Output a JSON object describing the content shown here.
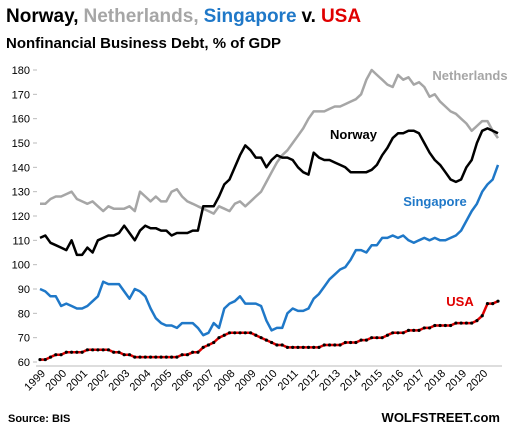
{
  "chart_data": {
    "type": "line",
    "title_parts": [
      {
        "text": "Norway,",
        "color": "#000000"
      },
      {
        "text": "Netherlands,",
        "color": "#a6a6a6"
      },
      {
        "text": "Singapore",
        "color": "#1f78c8"
      },
      {
        "text": "v.",
        "color": "#000000"
      },
      {
        "text": "USA",
        "color": "#e00000"
      }
    ],
    "subtitle": "Nonfinancial Business Debt, % of GDP",
    "source": "Source: BIS",
    "credit": "WOLFSTREET.com",
    "categories": [
      "1999",
      null,
      null,
      null,
      "2000",
      null,
      null,
      null,
      "2001",
      null,
      null,
      null,
      "2002",
      null,
      null,
      null,
      "2003",
      null,
      null,
      null,
      "2004",
      null,
      null,
      null,
      "2005",
      null,
      null,
      null,
      "2006",
      null,
      null,
      null,
      "2007",
      null,
      null,
      null,
      "2008",
      null,
      null,
      null,
      "2009",
      null,
      null,
      null,
      "2010",
      null,
      null,
      null,
      "2011",
      null,
      null,
      null,
      "2012",
      null,
      null,
      null,
      "2013",
      null,
      null,
      null,
      "2014",
      null,
      null,
      null,
      "2015",
      null,
      null,
      null,
      "2016",
      null,
      null,
      null,
      "2017",
      null,
      null,
      null,
      "2018",
      null,
      null,
      null,
      "2019",
      null,
      null,
      null,
      "2020",
      null,
      null,
      null
    ],
    "ylim": [
      60,
      180
    ],
    "yticks": [
      60,
      70,
      80,
      90,
      100,
      110,
      120,
      130,
      140,
      150,
      160,
      170,
      180
    ],
    "grid": false,
    "series": [
      {
        "name": "Netherlands",
        "color": "#a6a6a6",
        "values": [
          125,
          125,
          127,
          128,
          128,
          129,
          130,
          127,
          126,
          125,
          126,
          124,
          122,
          124,
          123,
          123,
          123,
          124,
          122,
          130,
          128,
          126,
          128,
          126,
          126,
          130,
          131,
          128,
          126,
          125,
          124,
          123,
          122,
          121,
          124,
          123,
          122,
          125,
          126,
          124,
          126,
          128,
          130,
          134,
          138,
          142,
          145,
          147,
          150,
          153,
          156,
          160,
          163,
          163,
          163,
          164,
          165,
          165,
          166,
          167,
          168,
          170,
          176,
          180,
          178,
          176,
          174,
          173,
          178,
          176,
          177,
          174,
          175,
          173,
          169,
          170,
          167,
          165,
          163,
          162,
          160,
          158,
          155,
          157,
          159,
          159,
          155,
          152
        ]
      },
      {
        "name": "Norway",
        "color": "#000000",
        "values": [
          111,
          112,
          109,
          108,
          107,
          106,
          110,
          104,
          104,
          107,
          105,
          110,
          111,
          112,
          112,
          113,
          116,
          113,
          110,
          114,
          116,
          115,
          115,
          114,
          114,
          112,
          113,
          113,
          113,
          114,
          114,
          124,
          124,
          124,
          128,
          133,
          135,
          140,
          145,
          149,
          147,
          144,
          144,
          140,
          143,
          145,
          144,
          144,
          143,
          140,
          138,
          137,
          146,
          144,
          143,
          143,
          142,
          141,
          140,
          138,
          138,
          138,
          138,
          139,
          141,
          145,
          148,
          152,
          154,
          154,
          155,
          155,
          154,
          150,
          146,
          143,
          141,
          138,
          135,
          134,
          135,
          140,
          143,
          150,
          155,
          156,
          155,
          154
        ]
      },
      {
        "name": "Singapore",
        "color": "#1f78c8",
        "values": [
          90,
          89,
          87,
          87,
          83,
          84,
          83,
          82,
          82,
          83,
          85,
          87,
          93,
          92,
          92,
          92,
          89,
          86,
          90,
          89,
          87,
          82,
          78,
          76,
          75,
          75,
          74,
          76,
          76,
          76,
          74,
          71,
          72,
          76,
          74,
          82,
          84,
          85,
          87,
          84,
          84,
          84,
          83,
          77,
          73,
          74,
          74,
          80,
          82,
          81,
          81,
          82,
          86,
          88,
          91,
          94,
          96,
          98,
          99,
          102,
          106,
          106,
          105,
          108,
          108,
          111,
          111,
          112,
          111,
          112,
          110,
          109,
          110,
          111,
          110,
          111,
          110,
          110,
          111,
          112,
          114,
          118,
          122,
          125,
          130,
          133,
          135,
          141
        ]
      },
      {
        "name": "USA",
        "color": "#e00000",
        "markers": true,
        "values": [
          61,
          61,
          62,
          63,
          63,
          64,
          64,
          64,
          64,
          65,
          65,
          65,
          65,
          65,
          64,
          64,
          63,
          63,
          62,
          62,
          62,
          62,
          62,
          62,
          62,
          62,
          62,
          63,
          63,
          64,
          64,
          66,
          67,
          68,
          70,
          71,
          72,
          72,
          72,
          72,
          72,
          71,
          70,
          69,
          68,
          67,
          67,
          66,
          66,
          66,
          66,
          66,
          66,
          66,
          67,
          67,
          67,
          67,
          68,
          68,
          68,
          69,
          69,
          70,
          70,
          70,
          71,
          72,
          72,
          72,
          73,
          73,
          73,
          74,
          74,
          75,
          75,
          75,
          75,
          76,
          76,
          76,
          76,
          77,
          79,
          84,
          84,
          85
        ]
      }
    ]
  }
}
